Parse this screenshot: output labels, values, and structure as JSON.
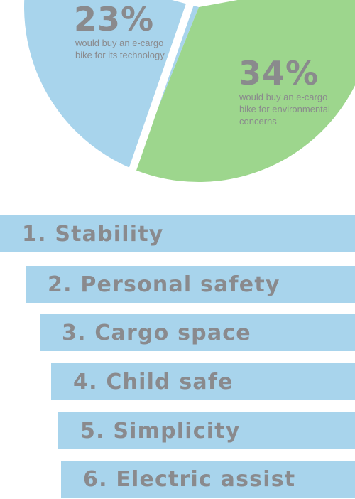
{
  "chart_data": {
    "type": "pie",
    "slices": [
      {
        "value": 23,
        "label": "23%",
        "description": "would buy  an e-cargo bike for its technology",
        "color": "#a8d4ec"
      },
      {
        "value": 34,
        "label": "34%",
        "description": "would buy an e-cargo bike for environmental concerns",
        "color": "#9dd68d"
      }
    ]
  },
  "ranking": {
    "items": [
      {
        "label": "1. Stability"
      },
      {
        "label": "2. Personal safety"
      },
      {
        "label": "3. Cargo space"
      },
      {
        "label": "4. Child safe"
      },
      {
        "label": "5. Simplicity"
      },
      {
        "label": "6. Electric assist"
      }
    ]
  },
  "colors": {
    "bar": "#a8d4ec",
    "text": "#8a8a8d"
  }
}
